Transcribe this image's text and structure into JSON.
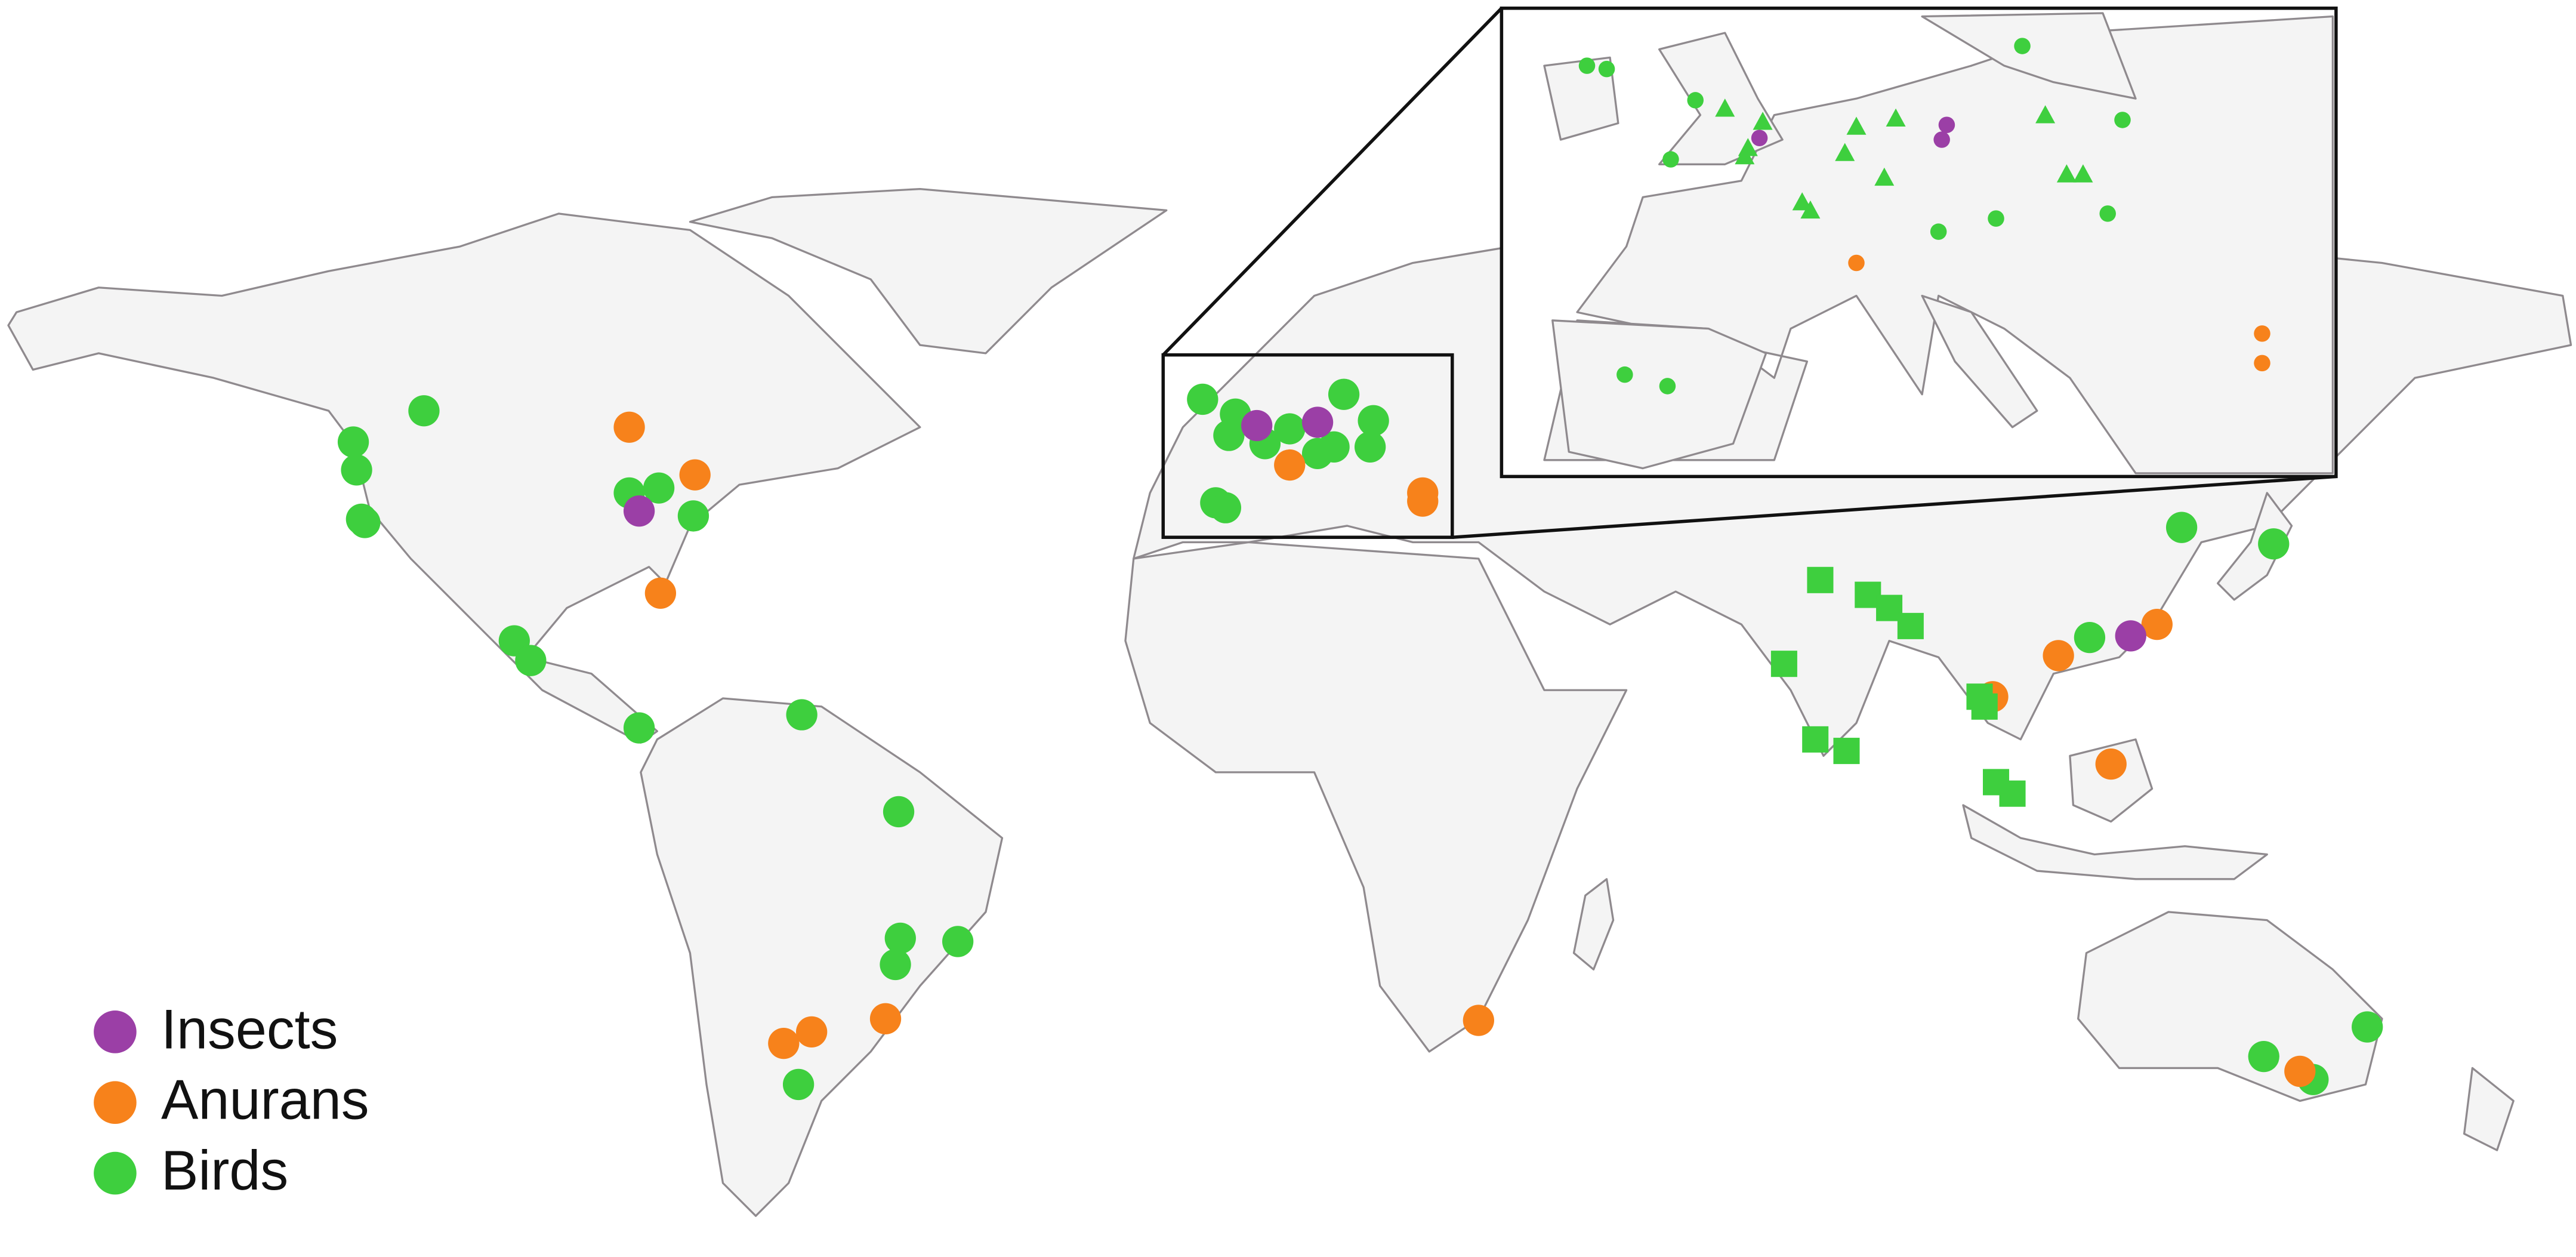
{
  "legend": {
    "items": [
      {
        "label": "Insects",
        "color": "#9b3fa6"
      },
      {
        "label": "Anurans",
        "color": "#f7821b"
      },
      {
        "label": "Birds",
        "color": "#3ecf3e"
      }
    ]
  }
}
